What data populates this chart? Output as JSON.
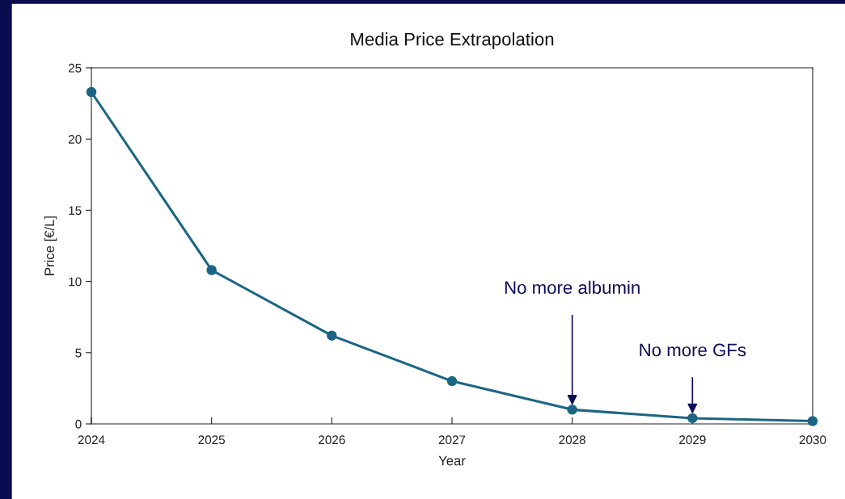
{
  "chart_data": {
    "type": "line",
    "title": "Media Price Extrapolation",
    "xlabel": "Year",
    "ylabel": "Price [€/L]",
    "x": [
      2024,
      2025,
      2026,
      2027,
      2028,
      2029,
      2030
    ],
    "series": [
      {
        "color": "#1b6585",
        "values": [
          23.3,
          10.8,
          6.2,
          3.0,
          1.0,
          0.4,
          0.2
        ]
      }
    ],
    "xlim": [
      2024,
      2030
    ],
    "xticks": [
      2024,
      2025,
      2026,
      2027,
      2028,
      2029,
      2030
    ],
    "ylim": [
      0,
      25
    ],
    "yticks": [
      0,
      5,
      10,
      15,
      20,
      25
    ],
    "marker": "circle",
    "line_style": "solid",
    "grid": false,
    "annotations": [
      {
        "text": "No more albumin",
        "x": 2028,
        "y": 1.0
      },
      {
        "text": "No more GFs",
        "x": 2029,
        "y": 0.4
      }
    ]
  }
}
